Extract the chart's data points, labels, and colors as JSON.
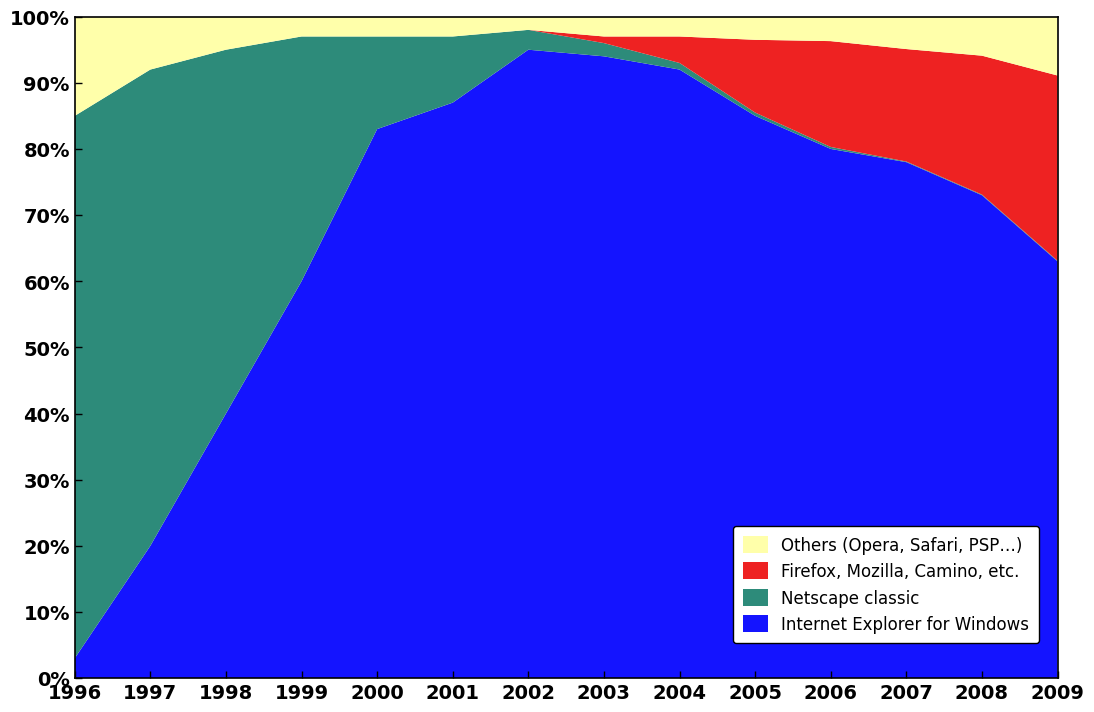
{
  "years": [
    1996,
    1997,
    1998,
    1999,
    2000,
    2001,
    2002,
    2003,
    2004,
    2005,
    2006,
    2007,
    2008,
    2009
  ],
  "ie_windows": [
    3,
    20,
    40,
    60,
    83,
    87,
    95,
    94,
    92,
    85,
    80,
    78,
    73,
    63
  ],
  "netscape": [
    82,
    72,
    55,
    37,
    14,
    10,
    3,
    2,
    1,
    0.5,
    0.3,
    0.1,
    0.1,
    0.1
  ],
  "firefox": [
    0,
    0,
    0,
    0,
    0,
    0,
    0,
    1,
    4,
    11,
    16,
    17,
    21,
    28
  ],
  "others": [
    15,
    8,
    5,
    3,
    3,
    3,
    2,
    3,
    3,
    3.5,
    3.7,
    4.9,
    5.9,
    8.9
  ],
  "colors": {
    "ie_windows": "#1414FF",
    "netscape": "#2D8B7A",
    "firefox": "#EE2222",
    "others": "#FFFFAA"
  },
  "labels": {
    "ie_windows": "Internet Explorer for Windows",
    "netscape": "Netscape classic",
    "firefox": "Firefox, Mozilla, Camino, etc.",
    "others": "Others (Opera, Safari, PSP…)"
  },
  "xlim": [
    1996,
    2009
  ],
  "ylim": [
    0,
    100
  ],
  "yticks": [
    0,
    10,
    20,
    30,
    40,
    50,
    60,
    70,
    80,
    90,
    100
  ],
  "xticks": [
    1996,
    1997,
    1998,
    1999,
    2000,
    2001,
    2002,
    2003,
    2004,
    2005,
    2006,
    2007,
    2008,
    2009
  ],
  "background_color": "#FFFFFF",
  "tick_fontsize": 14,
  "legend_fontsize": 12
}
